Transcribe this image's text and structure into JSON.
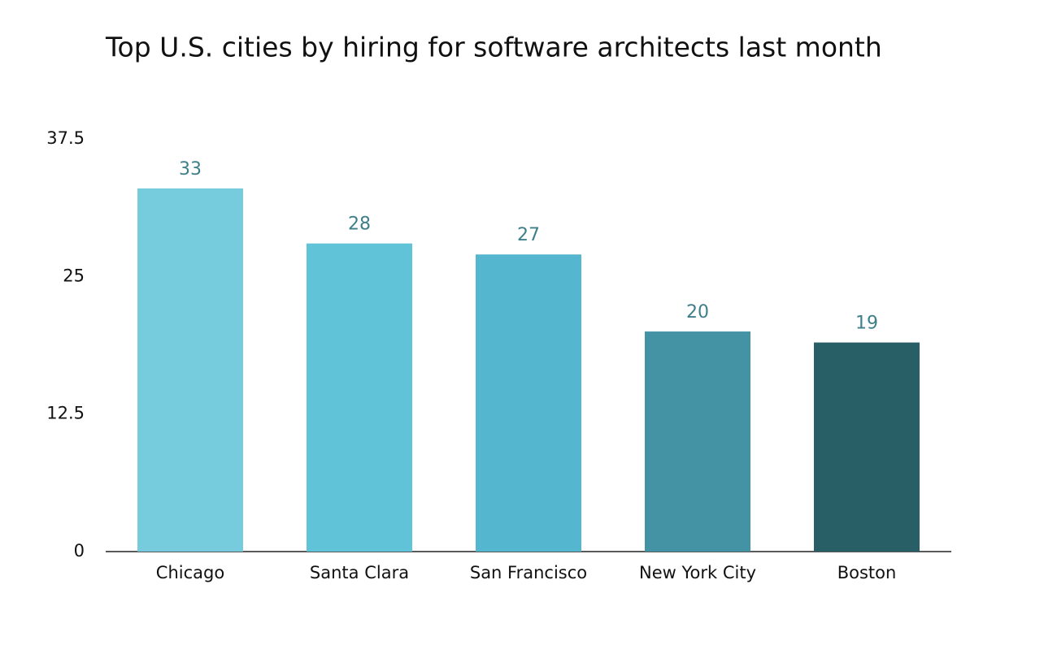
{
  "chart_data": {
    "type": "bar",
    "title": "Top U.S. cities by hiring for software architects last month",
    "categories": [
      "Chicago",
      "Santa Clara",
      "San Francisco",
      "New York City",
      "Boston"
    ],
    "values": [
      33,
      28,
      27,
      20,
      19
    ],
    "colors": [
      "#76cbdc",
      "#60c3d7",
      "#55b7cf",
      "#4493a5",
      "#285f66"
    ],
    "ylim": [
      0,
      37.5
    ],
    "yticks": [
      0,
      12.5,
      25,
      37.5
    ],
    "grid": false
  }
}
